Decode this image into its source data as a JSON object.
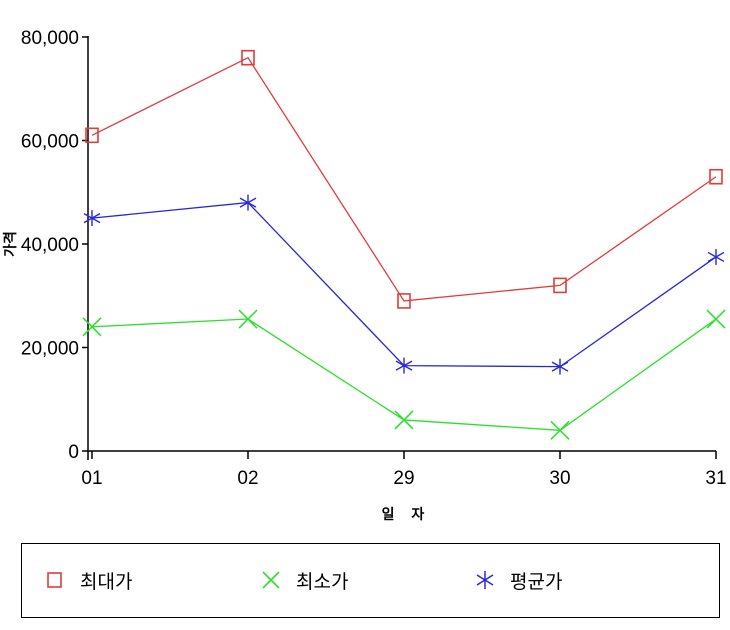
{
  "chart_data": {
    "type": "line",
    "title": "",
    "xlabel": "일 자",
    "ylabel": "가격",
    "categories": [
      "01",
      "02",
      "29",
      "30",
      "31"
    ],
    "ylim": [
      0,
      80000
    ],
    "yticks": [
      0,
      20000,
      40000,
      60000,
      80000
    ],
    "ytick_labels": [
      "0",
      "20,000",
      "40,000",
      "60,000",
      "80,000"
    ],
    "grid": false,
    "legend_position": "bottom",
    "series": [
      {
        "name": "최대가",
        "color": "#e03c3c",
        "marker": "square",
        "values": [
          61000,
          76000,
          29000,
          32000,
          53000
        ]
      },
      {
        "name": "최소가",
        "color": "#2ce02c",
        "marker": "x",
        "values": [
          24000,
          25500,
          6000,
          4000,
          25500
        ]
      },
      {
        "name": "평균가",
        "color": "#2828d8",
        "marker": "asterisk",
        "values": [
          45000,
          48000,
          16500,
          16300,
          37500
        ]
      }
    ]
  }
}
